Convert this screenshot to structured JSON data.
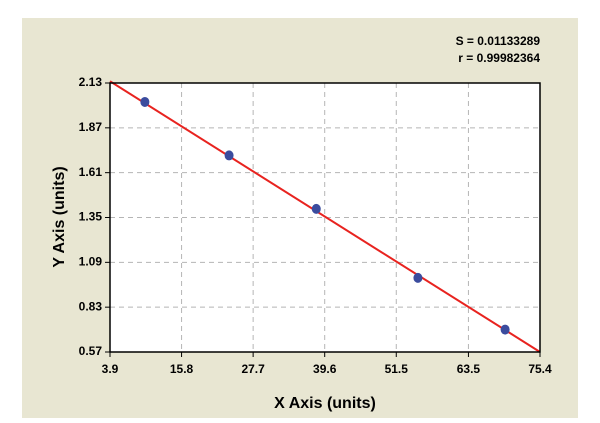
{
  "chart_data": {
    "type": "scatter",
    "xlabel": "X Axis (units)",
    "ylabel": "Y Axis (units)",
    "annotations": [
      "S = 0.01133289",
      "r = 0.99982364"
    ],
    "xlim": [
      3.9,
      75.4
    ],
    "xticks": [
      3.9,
      15.8,
      27.7,
      39.6,
      51.5,
      63.5,
      75.4
    ],
    "ylim": [
      0.57,
      2.13
    ],
    "yticks": [
      0.57,
      0.83,
      1.09,
      1.35,
      1.61,
      1.87,
      2.13
    ],
    "grid": true,
    "series": [
      {
        "color": "#3b4c9e",
        "x": [
          9.7,
          23.7,
          38.2,
          55.1,
          69.6
        ],
        "values": [
          2.02,
          1.71,
          1.4,
          1.0,
          0.7
        ]
      }
    ],
    "fit_line": {
      "color": "#e8231f",
      "x": [
        3.9,
        75.4
      ],
      "values": [
        2.14,
        0.57
      ]
    }
  }
}
